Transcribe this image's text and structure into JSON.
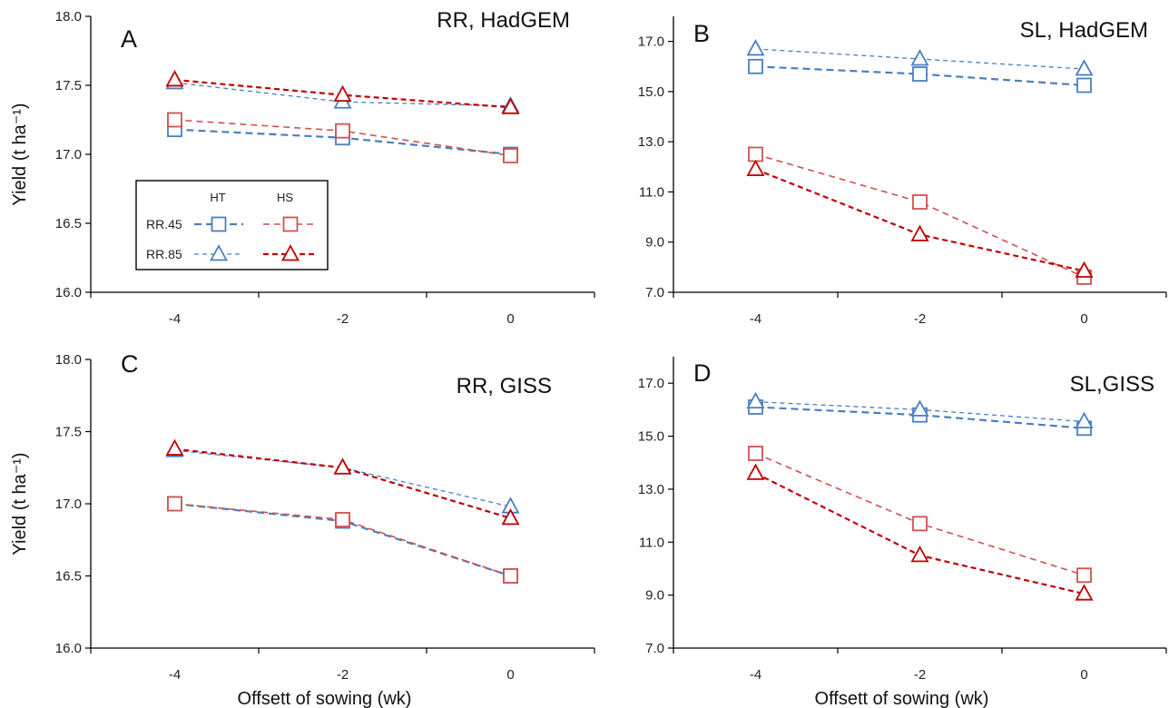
{
  "chart_data": [
    {
      "type": "line",
      "panel_letter": "A",
      "title": "RR, HadGEM",
      "xlabel": "",
      "ylabel": "Yield (t ha⁻¹)",
      "x": [
        -4,
        -2,
        0
      ],
      "x_ticks": [
        "-4",
        "-2",
        "0"
      ],
      "xlim": [
        -5,
        1
      ],
      "ylim": [
        16.0,
        18.0
      ],
      "y_ticks": [
        "16.0",
        "16.5",
        "17.0",
        "17.5",
        "18.0"
      ],
      "legend": {
        "position": "left",
        "col_headers": [
          "HT",
          "HS"
        ],
        "row_labels": [
          "RR.45",
          "RR.85"
        ]
      },
      "series": [
        {
          "name": "RR.45 HT",
          "values": [
            17.18,
            17.12,
            17.0
          ]
        },
        {
          "name": "RR.45 HS",
          "values": [
            17.25,
            17.17,
            16.99
          ]
        },
        {
          "name": "RR.85 HT",
          "values": [
            17.52,
            17.38,
            17.35
          ]
        },
        {
          "name": "RR.85 HS",
          "values": [
            17.54,
            17.43,
            17.34
          ]
        }
      ]
    },
    {
      "type": "line",
      "panel_letter": "B",
      "title": "SL, HadGEM",
      "xlabel": "",
      "ylabel": "",
      "x": [
        -4,
        -2,
        0
      ],
      "x_ticks": [
        "-4",
        "-2",
        "0"
      ],
      "xlim": [
        -5,
        1
      ],
      "ylim": [
        7.0,
        18.0
      ],
      "y_ticks": [
        "7.0",
        "9.0",
        "11.0",
        "13.0",
        "15.0",
        "17.0"
      ],
      "series": [
        {
          "name": "RR.45 HT",
          "values": [
            16.0,
            15.7,
            15.25
          ]
        },
        {
          "name": "RR.45 HS",
          "values": [
            12.5,
            10.6,
            7.6
          ]
        },
        {
          "name": "RR.85 HT",
          "values": [
            16.7,
            16.3,
            15.9
          ]
        },
        {
          "name": "RR.85 HS",
          "values": [
            11.9,
            9.3,
            7.85
          ]
        }
      ]
    },
    {
      "type": "line",
      "panel_letter": "C",
      "title": "RR, GISS",
      "xlabel": "Offsett of sowing (wk)",
      "ylabel": "Yield (t ha⁻¹)",
      "x": [
        -4,
        -2,
        0
      ],
      "x_ticks": [
        "-4",
        "-2",
        "0"
      ],
      "xlim": [
        -5,
        1
      ],
      "ylim": [
        16.0,
        18.0
      ],
      "y_ticks": [
        "16.0",
        "16.5",
        "17.0",
        "17.5",
        "18.0"
      ],
      "series": [
        {
          "name": "RR.45 HT",
          "values": [
            17.0,
            16.88,
            16.5
          ]
        },
        {
          "name": "RR.45 HS",
          "values": [
            17.0,
            16.89,
            16.5
          ]
        },
        {
          "name": "RR.85 HT",
          "values": [
            17.37,
            17.25,
            16.98
          ]
        },
        {
          "name": "RR.85 HS",
          "values": [
            17.38,
            17.25,
            16.9
          ]
        }
      ]
    },
    {
      "type": "line",
      "panel_letter": "D",
      "title": "SL,GISS",
      "xlabel": "Offsett of sowing (wk)",
      "ylabel": "",
      "x": [
        -4,
        -2,
        0
      ],
      "x_ticks": [
        "-4",
        "-2",
        "0"
      ],
      "xlim": [
        -5,
        1
      ],
      "ylim": [
        7.0,
        18.0
      ],
      "y_ticks": [
        "7.0",
        "9.0",
        "11.0",
        "13.0",
        "15.0",
        "17.0"
      ],
      "series": [
        {
          "name": "RR.45 HT",
          "values": [
            16.1,
            15.8,
            15.3
          ]
        },
        {
          "name": "RR.45 HS",
          "values": [
            14.35,
            11.7,
            9.75
          ]
        },
        {
          "name": "RR.85 HT",
          "values": [
            16.3,
            16.0,
            15.55
          ]
        },
        {
          "name": "RR.85 HS",
          "values": [
            13.6,
            10.5,
            9.05
          ]
        }
      ]
    }
  ],
  "style": {
    "ht_color": "#4a7fc0",
    "hs45_color": "#cd5252",
    "hs85_color": "#c00000",
    "axis_color": "#000000",
    "text_color": "#222222"
  }
}
